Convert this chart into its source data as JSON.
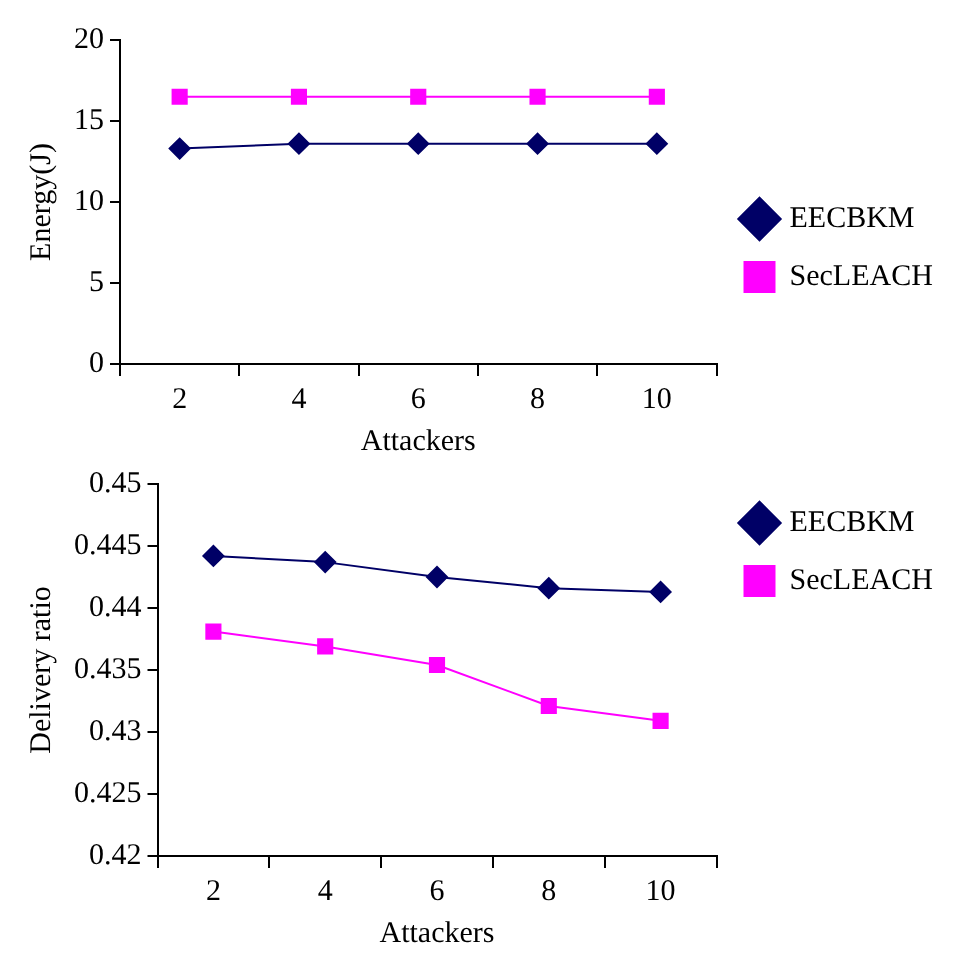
{
  "chart_data": [
    {
      "type": "line",
      "xlabel": "Attackers",
      "ylabel": "Energy(J)",
      "categories": [
        "2",
        "4",
        "6",
        "8",
        "10"
      ],
      "ylim": [
        0,
        20
      ],
      "yticks": [
        0,
        5,
        10,
        15,
        20
      ],
      "grid": false,
      "legend": "right",
      "series": [
        {
          "name": "EECBKM",
          "color": "#000066",
          "marker": "diamond",
          "values": [
            13.3,
            13.6,
            13.6,
            13.6,
            13.6
          ]
        },
        {
          "name": "SecLEACH",
          "color": "#ff00ff",
          "marker": "square",
          "values": [
            16.5,
            16.5,
            16.5,
            16.5,
            16.5
          ]
        }
      ]
    },
    {
      "type": "line",
      "xlabel": "Attackers",
      "ylabel": "Delivery ratio",
      "categories": [
        "2",
        "4",
        "6",
        "8",
        "10"
      ],
      "ylim": [
        0.42,
        0.45
      ],
      "yticks": [
        0.42,
        0.425,
        0.43,
        0.435,
        0.44,
        0.445,
        0.45
      ],
      "grid": false,
      "legend": "top right",
      "series": [
        {
          "name": "EECBKM",
          "color": "#000066",
          "marker": "diamond",
          "values": [
            0.4442,
            0.4437,
            0.4425,
            0.4416,
            0.4413
          ]
        },
        {
          "name": "SecLEACH",
          "color": "#ff00ff",
          "marker": "square",
          "values": [
            0.4381,
            0.4369,
            0.4354,
            0.4321,
            0.4309
          ]
        }
      ]
    }
  ]
}
